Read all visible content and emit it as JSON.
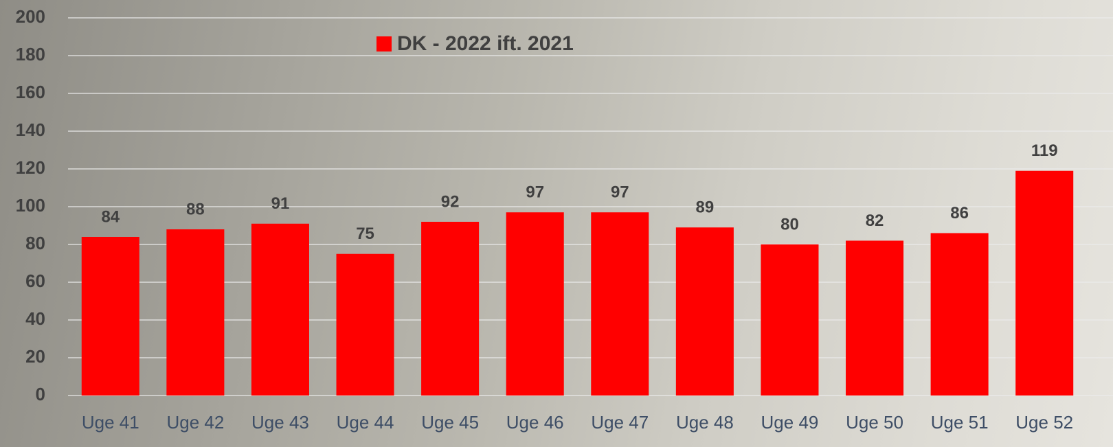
{
  "chart_data": {
    "type": "bar",
    "categories": [
      "Uge 41",
      "Uge 42",
      "Uge 43",
      "Uge 44",
      "Uge 45",
      "Uge 46",
      "Uge 47",
      "Uge 48",
      "Uge 49",
      "Uge 50",
      "Uge 51",
      "Uge 52"
    ],
    "series": [
      {
        "name": "DK - 2022 ift. 2021",
        "color": "#ff0000",
        "values": [
          84,
          88,
          91,
          75,
          92,
          97,
          97,
          89,
          80,
          82,
          86,
          119
        ]
      }
    ],
    "ylim": [
      0,
      200
    ],
    "yticks": [
      0,
      20,
      40,
      60,
      80,
      100,
      120,
      140,
      160,
      180,
      200
    ],
    "grid": true,
    "legend": "top"
  }
}
